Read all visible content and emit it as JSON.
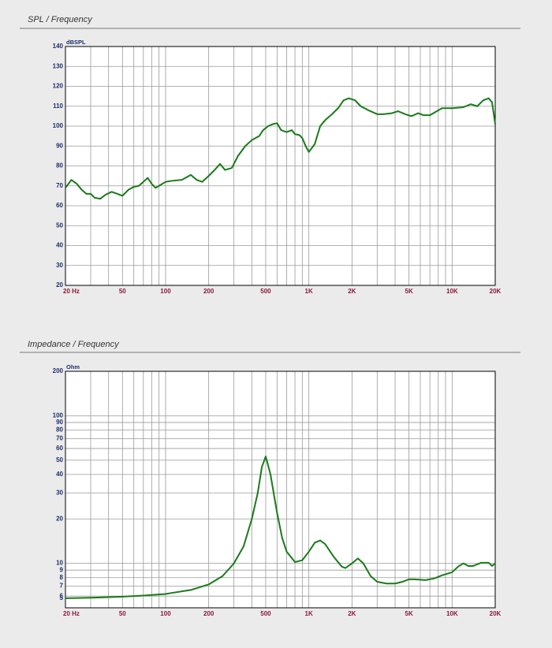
{
  "chart_data": [
    {
      "type": "line",
      "title": "SPL / Frequency",
      "y_label": "dBSPL",
      "xscale": "log",
      "yscale": "linear",
      "xlim": [
        20,
        20000
      ],
      "ylim": [
        20,
        140
      ],
      "xticks": [
        {
          "value": 20,
          "label": "20 Hz"
        },
        50,
        100,
        200,
        500,
        {
          "value": 1000,
          "label": "1K"
        },
        {
          "value": 2000,
          "label": "2K"
        },
        {
          "value": 5000,
          "label": "5K"
        },
        {
          "value": 10000,
          "label": "10K"
        },
        {
          "value": 20000,
          "label": "20K"
        }
      ],
      "xgrid": [
        20,
        30,
        40,
        50,
        60,
        70,
        80,
        90,
        100,
        200,
        300,
        400,
        500,
        600,
        700,
        800,
        900,
        1000,
        2000,
        3000,
        4000,
        5000,
        6000,
        7000,
        8000,
        9000,
        10000,
        20000
      ],
      "yticks": [
        20,
        30,
        40,
        50,
        60,
        70,
        80,
        90,
        100,
        110,
        120,
        130,
        140
      ],
      "grid": true,
      "x": [
        20,
        22,
        24,
        26,
        28,
        30,
        32,
        35,
        38,
        42,
        46,
        50,
        55,
        60,
        65,
        70,
        75,
        80,
        85,
        90,
        100,
        110,
        130,
        150,
        165,
        180,
        200,
        220,
        240,
        260,
        290,
        320,
        360,
        400,
        450,
        480,
        520,
        560,
        600,
        640,
        700,
        760,
        800,
        860,
        900,
        950,
        1000,
        1100,
        1200,
        1300,
        1450,
        1600,
        1750,
        1900,
        2100,
        2300,
        2600,
        3000,
        3300,
        3800,
        4200,
        4700,
        5200,
        5800,
        6300,
        7000,
        7600,
        8500,
        10000,
        12000,
        13500,
        15000,
        16500,
        18000,
        19000,
        20000
      ],
      "series": [
        {
          "color": "#1a7a1a",
          "values": [
            69,
            73,
            71,
            68,
            66,
            66,
            64,
            63.5,
            65.5,
            67,
            66,
            65,
            68,
            69.5,
            70,
            72,
            74,
            71,
            69,
            70,
            72,
            72.5,
            73,
            75.5,
            73,
            72,
            75,
            78,
            81,
            78,
            79,
            85,
            90,
            93,
            95,
            98,
            100,
            101,
            101.5,
            98,
            97,
            98,
            96,
            95.5,
            94,
            90,
            87,
            91,
            100,
            103,
            106,
            109,
            113,
            114,
            113,
            110,
            108,
            106,
            106,
            106.5,
            107.5,
            106,
            105,
            106.5,
            105.5,
            105.5,
            107,
            109,
            109,
            109.5,
            111,
            110,
            113,
            114,
            112,
            101
          ]
        }
      ]
    },
    {
      "type": "line",
      "title": "Impedance / Frequency",
      "y_label": "Ohm",
      "xscale": "log",
      "yscale": "log",
      "xlim": [
        20,
        20000
      ],
      "ylim": [
        5,
        200
      ],
      "xticks": [
        {
          "value": 20,
          "label": "20 Hz"
        },
        50,
        100,
        200,
        500,
        {
          "value": 1000,
          "label": "1K"
        },
        {
          "value": 2000,
          "label": "2K"
        },
        {
          "value": 5000,
          "label": "5K"
        },
        {
          "value": 10000,
          "label": "10K"
        },
        {
          "value": 20000,
          "label": "20K"
        }
      ],
      "xgrid": [
        20,
        30,
        40,
        50,
        60,
        70,
        80,
        90,
        100,
        200,
        300,
        400,
        500,
        600,
        700,
        800,
        900,
        1000,
        2000,
        3000,
        4000,
        5000,
        6000,
        7000,
        8000,
        9000,
        10000,
        20000
      ],
      "yticks": [
        5,
        6,
        7,
        8,
        9,
        10,
        20,
        30,
        40,
        50,
        60,
        70,
        80,
        90,
        100,
        200
      ],
      "grid": true,
      "x": [
        20,
        30,
        40,
        50,
        70,
        100,
        110,
        150,
        200,
        250,
        300,
        350,
        400,
        440,
        470,
        500,
        540,
        600,
        650,
        700,
        800,
        900,
        1000,
        1100,
        1200,
        1300,
        1500,
        1700,
        1800,
        2000,
        2200,
        2400,
        2700,
        3000,
        3500,
        4000,
        4500,
        5000,
        5500,
        6500,
        7500,
        8500,
        10000,
        11000,
        12000,
        13000,
        14000,
        16000,
        18000,
        19000,
        20000
      ],
      "series": [
        {
          "color": "#1a7a1a",
          "values": [
            5.8,
            5.85,
            5.9,
            5.95,
            6.05,
            6.2,
            6.3,
            6.6,
            7.2,
            8.2,
            10,
            13,
            20,
            30,
            45,
            53,
            40,
            22,
            15,
            12,
            10.2,
            10.5,
            12,
            13.8,
            14.3,
            13.5,
            11,
            9.5,
            9.3,
            10,
            10.8,
            10,
            8.2,
            7.5,
            7.3,
            7.3,
            7.5,
            7.8,
            7.8,
            7.7,
            7.9,
            8.3,
            8.7,
            9.5,
            10,
            9.6,
            9.6,
            10.1,
            10.1,
            9.6,
            10
          ]
        }
      ]
    }
  ]
}
